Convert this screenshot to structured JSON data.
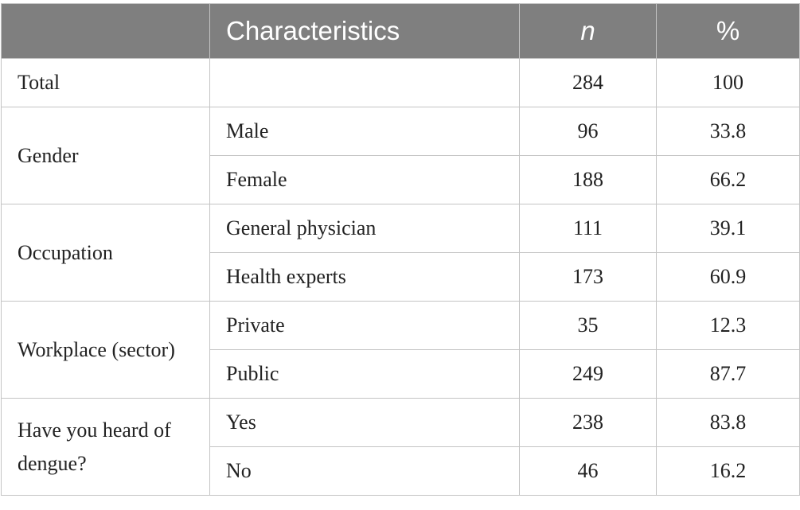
{
  "header": {
    "col1": "",
    "col2": "Characteristics",
    "col3": "n",
    "col4": "%"
  },
  "rows": [
    {
      "group": "Total",
      "sub": "",
      "n": "284",
      "pct": "100"
    },
    {
      "group": "Gender",
      "sub": "Male",
      "n": "96",
      "pct": "33.8"
    },
    {
      "group": "",
      "sub": "Female",
      "n": "188",
      "pct": "66.2"
    },
    {
      "group": "Occupation",
      "sub": "General physician",
      "n": "111",
      "pct": "39.1"
    },
    {
      "group": "",
      "sub": "Health experts",
      "n": "173",
      "pct": "60.9"
    },
    {
      "group": "Workplace (sector)",
      "sub": "Private",
      "n": "35",
      "pct": "12.3"
    },
    {
      "group": "",
      "sub": "Public",
      "n": "249",
      "pct": "87.7"
    },
    {
      "group": "Have you heard of dengue?",
      "sub": "Yes",
      "n": "238",
      "pct": "83.8"
    },
    {
      "group": "",
      "sub": "No",
      "n": "46",
      "pct": "16.2"
    }
  ]
}
